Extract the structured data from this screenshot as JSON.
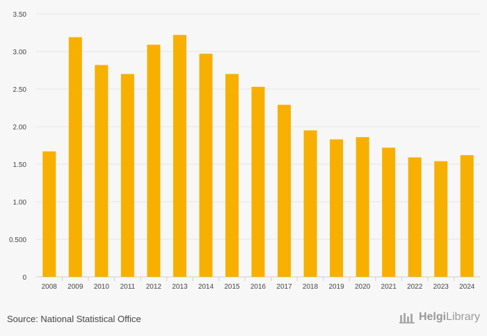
{
  "chart_data": {
    "type": "bar",
    "categories": [
      "2008",
      "2009",
      "2010",
      "2011",
      "2012",
      "2013",
      "2014",
      "2015",
      "2016",
      "2017",
      "2018",
      "2019",
      "2020",
      "2021",
      "2022",
      "2023",
      "2024"
    ],
    "values": [
      1.67,
      3.19,
      2.82,
      2.7,
      3.09,
      3.22,
      2.97,
      2.7,
      2.53,
      2.29,
      1.95,
      1.83,
      1.86,
      1.72,
      1.59,
      1.54,
      1.62
    ],
    "yticks": [
      0,
      0.5,
      1.0,
      1.5,
      2.0,
      2.5,
      3.0,
      3.5
    ],
    "ytick_labels": [
      "0",
      "0.500",
      "1.00",
      "1.50",
      "2.00",
      "2.50",
      "3.00",
      "3.50"
    ],
    "ylim": [
      0,
      3.5
    ],
    "title": "",
    "xlabel": "",
    "ylabel": "",
    "grid": true,
    "bar_color": "#f7b000"
  },
  "footer": {
    "source": "Source: National Statistical Office",
    "logo_text_1": "Helgi",
    "logo_text_2": "Library",
    "logo_icon": "helgi-library-logo-icon"
  }
}
